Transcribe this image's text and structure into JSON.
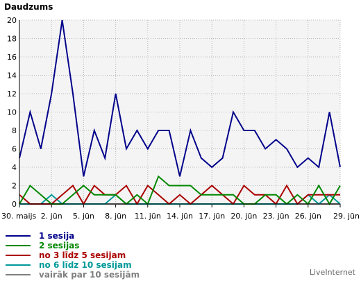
{
  "chart_data": {
    "type": "line",
    "ylabel": "Daudzums",
    "ylim": [
      0,
      20
    ],
    "yticks": [
      0,
      2,
      4,
      6,
      8,
      10,
      12,
      14,
      16,
      18,
      20
    ],
    "x_count": 31,
    "xtick_labels": [
      {
        "index": 0,
        "label": "30. maijs"
      },
      {
        "index": 3,
        "label": "2. jūn"
      },
      {
        "index": 6,
        "label": "5. jūn"
      },
      {
        "index": 9,
        "label": "8. jūn"
      },
      {
        "index": 12,
        "label": "11. jūn"
      },
      {
        "index": 15,
        "label": "14. jūn"
      },
      {
        "index": 18,
        "label": "17. jūn"
      },
      {
        "index": 21,
        "label": "20. jūn"
      },
      {
        "index": 24,
        "label": "23. jūn"
      },
      {
        "index": 27,
        "label": "26. jūn"
      },
      {
        "index": 30,
        "label": "29. jūn"
      }
    ],
    "grid": true,
    "series": [
      {
        "name": "1 sesija",
        "color": "#00008b",
        "values": [
          5,
          10,
          6,
          12,
          20,
          12,
          3,
          8,
          5,
          12,
          6,
          8,
          6,
          8,
          8,
          3,
          8,
          5,
          4,
          5,
          10,
          8,
          8,
          6,
          7,
          6,
          4,
          5,
          4,
          10,
          4
        ]
      },
      {
        "name": "2 sesijas",
        "color": "#008800",
        "values": [
          0,
          2,
          1,
          0,
          0,
          1,
          2,
          1,
          1,
          1,
          0,
          1,
          0,
          3,
          2,
          2,
          2,
          1,
          1,
          1,
          1,
          0,
          0,
          1,
          1,
          0,
          1,
          0,
          2,
          0,
          2
        ]
      },
      {
        "name": "no 3 līdz 5 sesijam",
        "color": "#aa0000",
        "values": [
          1,
          0,
          0,
          0,
          1,
          2,
          0,
          2,
          1,
          1,
          2,
          0,
          2,
          1,
          0,
          1,
          0,
          1,
          2,
          1,
          0,
          2,
          1,
          1,
          0,
          2,
          0,
          1,
          1,
          1,
          1
        ]
      },
      {
        "name": "no 6 līdz 10 sesijam",
        "color": "#009999",
        "values": [
          0,
          0,
          0,
          1,
          0,
          0,
          0,
          0,
          0,
          1,
          0,
          0,
          0,
          0,
          0,
          0,
          0,
          0,
          0,
          0,
          0,
          0,
          0,
          0,
          0,
          0,
          0,
          1,
          0,
          1,
          0
        ]
      },
      {
        "name": "vairāk par 10 sesijām",
        "color": "#808080",
        "values": [
          0,
          0,
          0,
          0,
          0,
          0,
          0,
          0,
          0,
          0,
          0,
          0,
          0,
          0,
          0,
          0,
          0,
          0,
          0,
          0,
          0,
          0,
          0,
          0,
          0,
          0,
          0,
          0,
          0,
          0,
          0
        ]
      }
    ]
  },
  "footer": {
    "brand": "LiveInternet"
  }
}
